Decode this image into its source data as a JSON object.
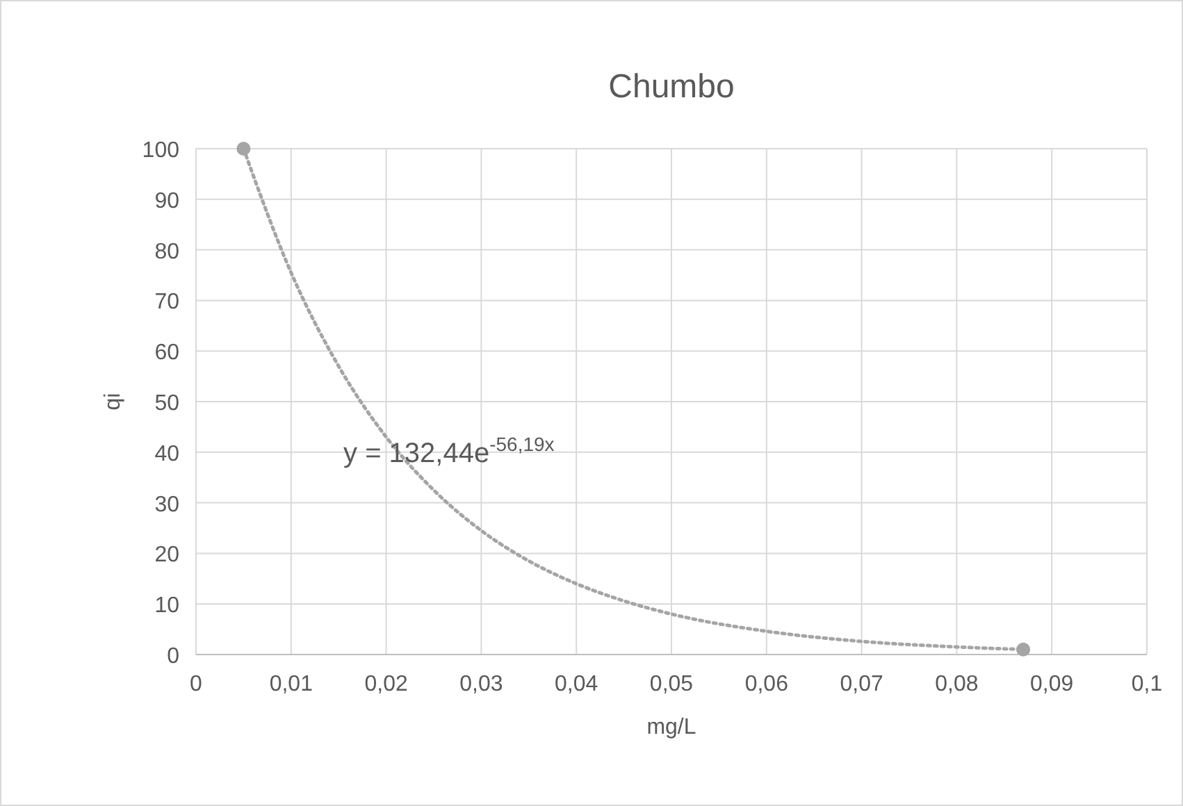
{
  "chart_data": {
    "type": "scatter",
    "title": "Chumbo",
    "xlabel": "mg/L",
    "ylabel": "qi",
    "xlim": [
      0,
      0.1
    ],
    "xticks": [
      {
        "value": 0,
        "label": "0"
      },
      {
        "value": 0.01,
        "label": "0,01"
      },
      {
        "value": 0.02,
        "label": "0,02"
      },
      {
        "value": 0.03,
        "label": "0,03"
      },
      {
        "value": 0.04,
        "label": "0,04"
      },
      {
        "value": 0.05,
        "label": "0,05"
      },
      {
        "value": 0.06,
        "label": "0,06"
      },
      {
        "value": 0.07,
        "label": "0,07"
      },
      {
        "value": 0.08,
        "label": "0,08"
      },
      {
        "value": 0.09,
        "label": "0,09"
      },
      {
        "value": 0.1,
        "label": "0,1"
      }
    ],
    "ylim": [
      0,
      100
    ],
    "yticks": [
      0,
      10,
      20,
      30,
      40,
      50,
      60,
      70,
      80,
      90,
      100
    ],
    "grid": true,
    "marker": "circle",
    "series": [
      {
        "type": "scatter",
        "color": "#a5a5a5",
        "x": [
          0.005,
          0.087
        ],
        "values": [
          100,
          1
        ]
      },
      {
        "type": "line",
        "color": "#a5a5a5",
        "line_style": "dotted",
        "marker": "none",
        "x": [
          0.005,
          0.01,
          0.015,
          0.02,
          0.025,
          0.03,
          0.035,
          0.04,
          0.045,
          0.05,
          0.06,
          0.07,
          0.08,
          0.087
        ],
        "values": [
          100,
          75.5,
          57,
          43,
          32.5,
          24.5,
          18.5,
          14,
          10.6,
          8,
          4.6,
          2.6,
          1.5,
          1
        ]
      }
    ],
    "annotations": [
      "y = 132,44e$^{-56,19x}$"
    ]
  }
}
